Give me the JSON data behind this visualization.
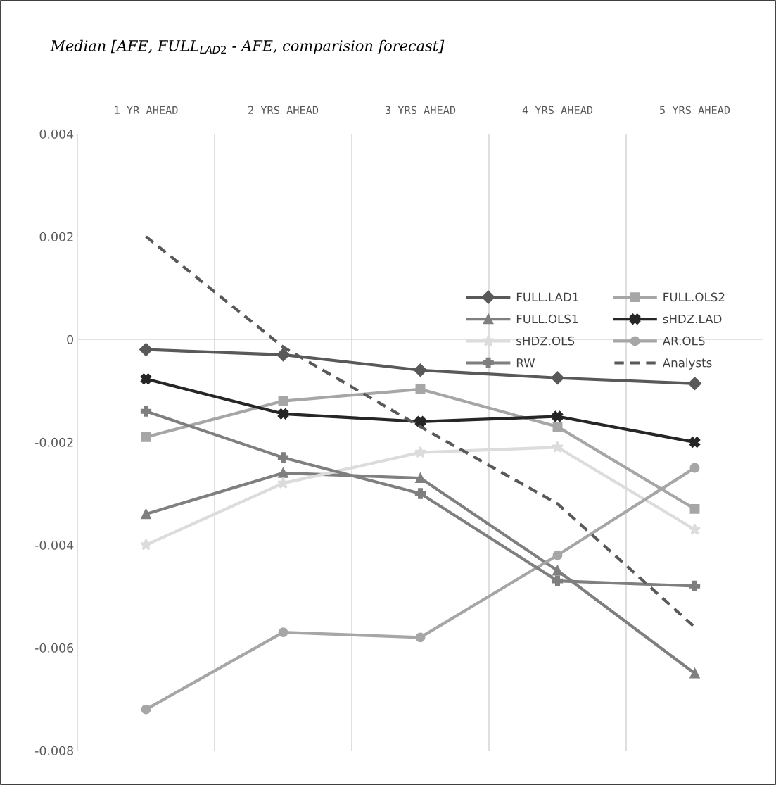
{
  "chart_data": {
    "type": "line",
    "title": "Median [AFE, FULL$_{LAD2}$ - AFE, comparision forecast]",
    "categories": [
      "1 YR AHEAD",
      "2 YRS AHEAD",
      "3 YRS AHEAD",
      "4 YRS AHEAD",
      "5 YRS AHEAD"
    ],
    "ylim": [
      -0.008,
      0.004
    ],
    "yticks": [
      -0.008,
      -0.006,
      -0.004,
      -0.002,
      0,
      0.002,
      0.004
    ],
    "grid": "x",
    "legend": "top right",
    "ref_lines": [
      {
        "axis": "y",
        "value": 0,
        "color": "#d9d9d9"
      }
    ],
    "series": [
      {
        "name": "FULL.LAD1",
        "color": "#595959",
        "marker": "diamond",
        "values": [
          -0.0002,
          -0.0003,
          -0.0006,
          -0.00075,
          -0.00086
        ]
      },
      {
        "name": "FULL.OLS2",
        "color": "#a6a6a6",
        "marker": "square",
        "values": [
          -0.0019,
          -0.0012,
          -0.00097,
          -0.0017,
          -0.0033
        ]
      },
      {
        "name": "FULL.OLS1",
        "color": "#7f7f7f",
        "marker": "triangle",
        "values": [
          -0.0034,
          -0.0026,
          -0.0027,
          -0.0045,
          -0.0065
        ]
      },
      {
        "name": "sHDZ.LAD",
        "color": "#262626",
        "marker": "cross",
        "values": [
          -0.00077,
          -0.00145,
          -0.0016,
          -0.0015,
          -0.002
        ]
      },
      {
        "name": "sHDZ.OLS",
        "color": "#dcdcdc",
        "marker": "star",
        "values": [
          -0.004,
          -0.0028,
          -0.0022,
          -0.0021,
          -0.0037
        ]
      },
      {
        "name": "AR.OLS",
        "color": "#a6a6a6",
        "marker": "circle",
        "values": [
          -0.0072,
          -0.0057,
          -0.0058,
          -0.0042,
          -0.0025
        ]
      },
      {
        "name": "RW",
        "color": "#7f7f7f",
        "marker": "plus",
        "values": [
          -0.0014,
          -0.0023,
          -0.003,
          -0.0047,
          -0.0048
        ]
      },
      {
        "name": "Analysts",
        "color": "#595959",
        "marker": "none",
        "line_style": "dashed",
        "values": [
          0.002,
          -0.00015,
          -0.0017,
          -0.0032,
          -0.0056
        ]
      }
    ]
  }
}
